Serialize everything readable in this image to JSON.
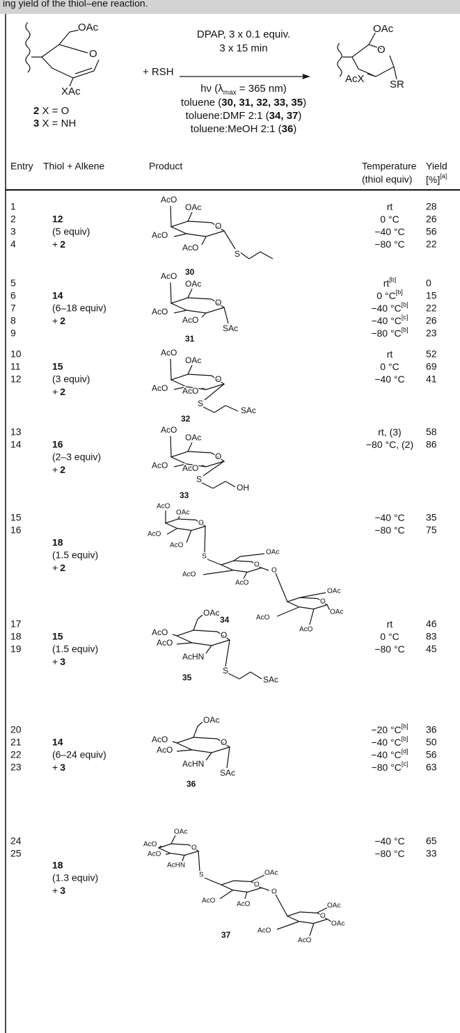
{
  "header": {
    "caption": "ing yield of the thiol–ene reaction."
  },
  "scheme": {
    "reactant": [
      "OAc",
      "O",
      "XAc"
    ],
    "legend": [
      [
        {
          "text": "2",
          "bold": true
        },
        {
          "text": " X = O"
        }
      ],
      [
        {
          "text": "3",
          "bold": true
        },
        {
          "text": " X = NH"
        }
      ]
    ],
    "reagent": "+ RSH",
    "above": [
      [
        {
          "text": "DPAP, 3 x 0.1 equiv."
        }
      ],
      [
        {
          "text": "3 x 15 min"
        }
      ]
    ],
    "below": [
      [
        {
          "text": "hν (λ"
        },
        {
          "text": "max",
          "sub": true
        },
        {
          "text": " = 365 nm)"
        }
      ],
      [
        {
          "text": "toluene ("
        },
        {
          "text": "30, 31, 32, 33, 35",
          "bold": true
        },
        {
          "text": ")"
        }
      ],
      [
        {
          "text": "toluene:DMF 2:1 ("
        },
        {
          "text": "34, 37",
          "bold": true
        },
        {
          "text": ")"
        }
      ],
      [
        {
          "text": "toluene:MeOH 2:1 ("
        },
        {
          "text": "36",
          "bold": true
        },
        {
          "text": ")"
        }
      ]
    ],
    "product": [
      "OAc",
      "O",
      "AcX",
      "SR"
    ]
  },
  "table": {
    "headers": {
      "entry": "Entry",
      "thiol": "Thiol + Alkene",
      "product": "Product",
      "temperature": "Temperature",
      "temperature_sub": "(thiol equiv)",
      "yield": "Yield",
      "yield_unit": "[%]",
      "yield_note": "[a]"
    },
    "groups": [
      {
        "thiol": "12",
        "equiv": "(5 equiv)",
        "plus": "+",
        "alkene": "2",
        "product": {
          "labels": [
            "AcO",
            "OAc",
            "O",
            "AcO",
            "AcO",
            "S"
          ],
          "compound": "30"
        },
        "rows": [
          {
            "entry": 1,
            "temp": "rt",
            "yield": 28
          },
          {
            "entry": 2,
            "temp": "0 °C",
            "yield": 26
          },
          {
            "entry": 3,
            "temp": "−40 °C",
            "yield": 56
          },
          {
            "entry": 4,
            "temp": "−80 °C",
            "yield": 22
          }
        ]
      },
      {
        "thiol": "14",
        "equiv": "(6–18 equiv)",
        "plus": "+",
        "alkene": "2",
        "product": {
          "labels": [
            "AcO",
            "OAc",
            "O",
            "AcO",
            "AcO",
            "SAc"
          ],
          "compound": "31"
        },
        "rows": [
          {
            "entry": 5,
            "temp": "rt",
            "note": "[b]",
            "yield": 0
          },
          {
            "entry": 6,
            "temp": "0 °C",
            "note": "[b]",
            "yield": 15
          },
          {
            "entry": 7,
            "temp": "−40 °C",
            "note": "[b]",
            "yield": 22
          },
          {
            "entry": 8,
            "temp": "−40 °C",
            "note": "[c]",
            "yield": 26
          },
          {
            "entry": 9,
            "temp": "−80 °C",
            "note": "[b]",
            "yield": 23
          }
        ]
      },
      {
        "thiol": "15",
        "equiv": "(3 equiv)",
        "plus": "+",
        "alkene": "2",
        "product": {
          "labels": [
            "AcO",
            "OAc",
            "O",
            "AcO",
            "AcO",
            "S",
            "SAc"
          ],
          "compound": "32"
        },
        "rows": [
          {
            "entry": 10,
            "temp": "rt",
            "yield": 52
          },
          {
            "entry": 11,
            "temp": "0 °C",
            "yield": 69
          },
          {
            "entry": 12,
            "temp": "−40 °C",
            "yield": 41
          }
        ]
      },
      {
        "thiol": "16",
        "equiv": "(2–3 equiv)",
        "plus": "+",
        "alkene": "2",
        "product": {
          "labels": [
            "AcO",
            "OAc",
            "O",
            "AcO",
            "AcO",
            "S",
            "OH"
          ],
          "compound": "33"
        },
        "rows": [
          {
            "entry": 13,
            "temp": "rt, (3)",
            "yield": 58
          },
          {
            "entry": 14,
            "temp": "−80 °C, (2)",
            "yield": 86
          }
        ]
      },
      {
        "thiol": "18",
        "equiv": "(1.5 equiv)",
        "plus": "+",
        "alkene": "2",
        "product": {
          "labels": [
            "AcO",
            "OAc",
            "O",
            "AcO",
            "AcO",
            "S",
            "O",
            "OAc",
            "O",
            "AcO",
            "AcO",
            "O",
            "OAc",
            "OAc",
            "AcO",
            "AcO"
          ],
          "compound": "34"
        },
        "rows": [
          {
            "entry": 15,
            "temp": "−40 °C",
            "yield": 35
          },
          {
            "entry": 16,
            "temp": "−80 °C",
            "yield": 75
          }
        ]
      },
      {
        "thiol": "15",
        "equiv": "(1.5 equiv)",
        "plus": "+",
        "alkene": "3",
        "product": {
          "labels": [
            "OAc",
            "O",
            "AcO",
            "AcO",
            "AcHN",
            "S",
            "SAc"
          ],
          "compound": "35"
        },
        "rows": [
          {
            "entry": 17,
            "temp": "rt",
            "yield": 46
          },
          {
            "entry": 18,
            "temp": "0 °C",
            "yield": 83
          },
          {
            "entry": 19,
            "temp": "−80 °C",
            "yield": 45
          }
        ]
      },
      {
        "thiol": "14",
        "equiv": "(6–24 equiv)",
        "plus": "+",
        "alkene": "3",
        "product": {
          "labels": [
            "OAc",
            "O",
            "AcO",
            "AcO",
            "AcHN",
            "SAc"
          ],
          "compound": "36"
        },
        "rows": [
          {
            "entry": 20,
            "temp": "−20 °C",
            "note": "[b]",
            "yield": 36
          },
          {
            "entry": 21,
            "temp": "−40 °C",
            "note": "[b]",
            "yield": 50
          },
          {
            "entry": 22,
            "temp": "−40 °C",
            "note": "[d]",
            "yield": 56
          },
          {
            "entry": 23,
            "temp": "−80 °C",
            "note": "[c]",
            "yield": 63
          }
        ]
      },
      {
        "thiol": "18",
        "equiv": "(1.3 equiv)",
        "plus": "+",
        "alkene": "3",
        "product": {
          "labels": [
            "OAc",
            "O",
            "AcO",
            "AcO",
            "AcHN",
            "S",
            "O",
            "OAc",
            "O",
            "AcO",
            "AcO",
            "O",
            "OAc",
            "OAc",
            "AcO",
            "AcO"
          ],
          "compound": "37"
        },
        "rows": [
          {
            "entry": 24,
            "temp": "−40 °C",
            "yield": 65
          },
          {
            "entry": 25,
            "temp": "−80 °C",
            "yield": 33
          }
        ]
      }
    ]
  }
}
